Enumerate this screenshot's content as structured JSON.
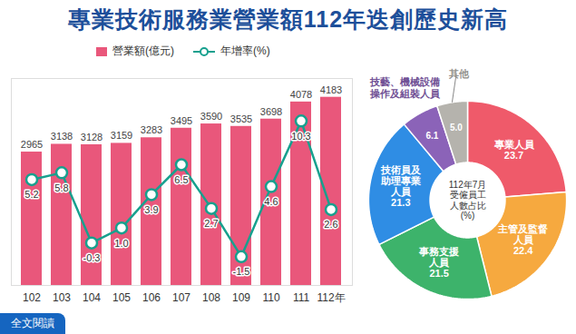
{
  "title": "專業技術服務業營業額112年迭創歷史新高",
  "footer": "全文閱讀",
  "chart_data": [
    {
      "type": "bar",
      "categories": [
        "102",
        "103",
        "104",
        "105",
        "106",
        "107",
        "108",
        "109",
        "110",
        "111",
        "112年"
      ],
      "series": [
        {
          "name": "營業額(億元)",
          "type": "bar",
          "color": "#e9577b",
          "values": [
            2965,
            3138,
            3128,
            3159,
            3283,
            3495,
            3590,
            3535,
            3698,
            4078,
            4183
          ]
        },
        {
          "name": "年增率(%)",
          "type": "line",
          "axis": "y2",
          "color": "#17a08e",
          "marker": "circle",
          "values": [
            5.2,
            5.8,
            -0.3,
            1.0,
            3.9,
            6.5,
            2.7,
            -1.5,
            4.6,
            10.3,
            2.6
          ],
          "value_labels": [
            "5.2",
            "5.8",
            "-0.3",
            "1.0",
            "3.9",
            "6.5",
            "2.7",
            "-1.5",
            "4.6",
            "10.3",
            "2.6"
          ]
        }
      ],
      "ylim": [
        0,
        4600
      ],
      "y2lim": [
        -4,
        14
      ],
      "tick_labels": "x",
      "data_labels": true,
      "legend": "top"
    },
    {
      "type": "pie",
      "title": "112年7月\n受僱員工\n人數占比\n(%)",
      "categories": [
        "專業人員",
        "主管及監督\n人員",
        "事務支援\n人員",
        "技術員及\n助理專業\n人員",
        "技藝、機械設備\n操作及組裝人員",
        "其他"
      ],
      "values": [
        23.7,
        22.4,
        21.5,
        21.3,
        6.1,
        5.0
      ],
      "value_labels": [
        "23.7",
        "22.4",
        "21.5",
        "21.3",
        "6.1",
        "5.0"
      ],
      "colors": [
        "#ef5a6a",
        "#f6a93f",
        "#3db36b",
        "#2f8de4",
        "#8b63b8",
        "#b5b3ad"
      ],
      "data_labels": true
    }
  ]
}
